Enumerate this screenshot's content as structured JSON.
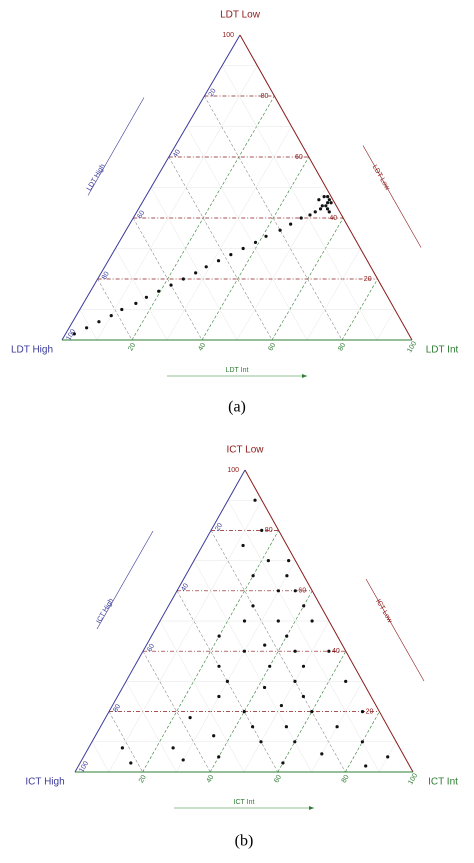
{
  "chart_data": [
    {
      "type": "ternary",
      "corner_labels": {
        "low": "LDT Low",
        "high": "LDT High",
        "int": "LDT Int"
      },
      "side_labels": {
        "low": "LDT Low",
        "high": "LDT High",
        "int": "LDT Int"
      },
      "caption": "(a)",
      "ticks": [
        20,
        40,
        60,
        80,
        100
      ],
      "grid": true,
      "color": "#111111",
      "low": [
        2,
        4,
        6,
        8,
        10,
        12,
        14,
        16,
        18,
        20,
        22,
        24,
        26,
        28,
        30,
        32,
        34,
        36,
        38,
        40,
        41,
        42,
        43,
        44,
        45,
        46,
        47,
        44,
        46,
        43,
        45,
        47,
        42
      ],
      "int": [
        2.5,
        5,
        7.5,
        10,
        12,
        15,
        17,
        19.5,
        22,
        24.5,
        27,
        29,
        31.5,
        34,
        36.5,
        39,
        41,
        44,
        46,
        48,
        50,
        51,
        52,
        53,
        54,
        53,
        52,
        52,
        50,
        54,
        53,
        51,
        55
      ]
    },
    {
      "type": "ternary",
      "corner_labels": {
        "low": "ICT Low",
        "high": "ICT High",
        "int": "ICT Int"
      },
      "side_labels": {
        "low": "ICT Low",
        "high": "ICT High",
        "int": "ICT Int"
      },
      "caption": "(b)",
      "ticks": [
        20,
        40,
        60,
        80,
        100
      ],
      "grid": true,
      "color": "#111111",
      "low": [
        90,
        80,
        75,
        70,
        65,
        60,
        55,
        50,
        45,
        40,
        35,
        30,
        25,
        20,
        15,
        10,
        5,
        3,
        5,
        8,
        3,
        10,
        15,
        20,
        25,
        30,
        35,
        40,
        45,
        50,
        55,
        60,
        65,
        70,
        12,
        18,
        6,
        2,
        40,
        30,
        20,
        50,
        10,
        22,
        28,
        35,
        42,
        8,
        4,
        15
      ],
      "int": [
        8,
        15,
        12,
        22,
        20,
        30,
        25,
        35,
        40,
        45,
        40,
        50,
        55,
        60,
        70,
        80,
        90,
        60,
        40,
        25,
        15,
        50,
        45,
        40,
        30,
        30,
        25,
        30,
        20,
        25,
        40,
        35,
        30,
        28,
        35,
        25,
        70,
        85,
        55,
        65,
        75,
        45,
        60,
        50,
        42,
        50,
        35,
        10,
        30,
        55
      ]
    }
  ]
}
